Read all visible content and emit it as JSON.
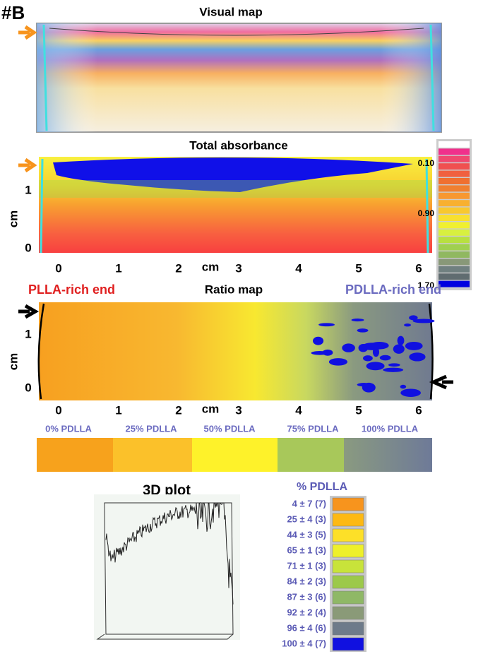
{
  "panel_label": "#B",
  "visual_map": {
    "title": "Visual map"
  },
  "total_absorbance": {
    "title": "Total absorbance",
    "x_ticks": [
      "0",
      "1",
      "2",
      "3",
      "4",
      "5",
      "6"
    ],
    "x_label": "cm",
    "y_ticks": [
      "0",
      "1"
    ],
    "y_label": "cm"
  },
  "colorbar": {
    "labels": [
      "0.10",
      "0.90",
      "1.70"
    ]
  },
  "ratio_map": {
    "left_label": "PLLA-rich end",
    "title": "Ratio map",
    "right_label": "PDLLA-rich end",
    "x_ticks": [
      "0",
      "1",
      "2",
      "3",
      "4",
      "5",
      "6"
    ],
    "x_label": "cm",
    "y_ticks": [
      "0",
      "1"
    ],
    "y_label": "cm"
  },
  "composition_strip": {
    "labels": [
      "0% PDLLA",
      "25% PDLLA",
      "50% PDLLA",
      "75% PDLLA",
      "100% PDLLA"
    ]
  },
  "plot_3d": {
    "title": "3D plot"
  },
  "legend": {
    "title": "% PDLLA",
    "entries": [
      {
        "label": "4 ± 7 (7)",
        "color": "#f7941d"
      },
      {
        "label": "25 ± 4 (3)",
        "color": "#fdb913"
      },
      {
        "label": "44 ± 3 (5)",
        "color": "#fde028"
      },
      {
        "label": "65 ± 1 (3)",
        "color": "#eef02a"
      },
      {
        "label": "71 ± 1 (3)",
        "color": "#c8e33a"
      },
      {
        "label": "84 ± 2 (3)",
        "color": "#9cc94a"
      },
      {
        "label": "87 ± 3 (6)",
        "color": "#8fb866"
      },
      {
        "label": "92 ± 2 (4)",
        "color": "#8a9a78"
      },
      {
        "label": "96 ± 4 (6)",
        "color": "#6e7b8a"
      },
      {
        "label": "100 ± 4 (7)",
        "color": "#1010e0"
      }
    ]
  }
}
